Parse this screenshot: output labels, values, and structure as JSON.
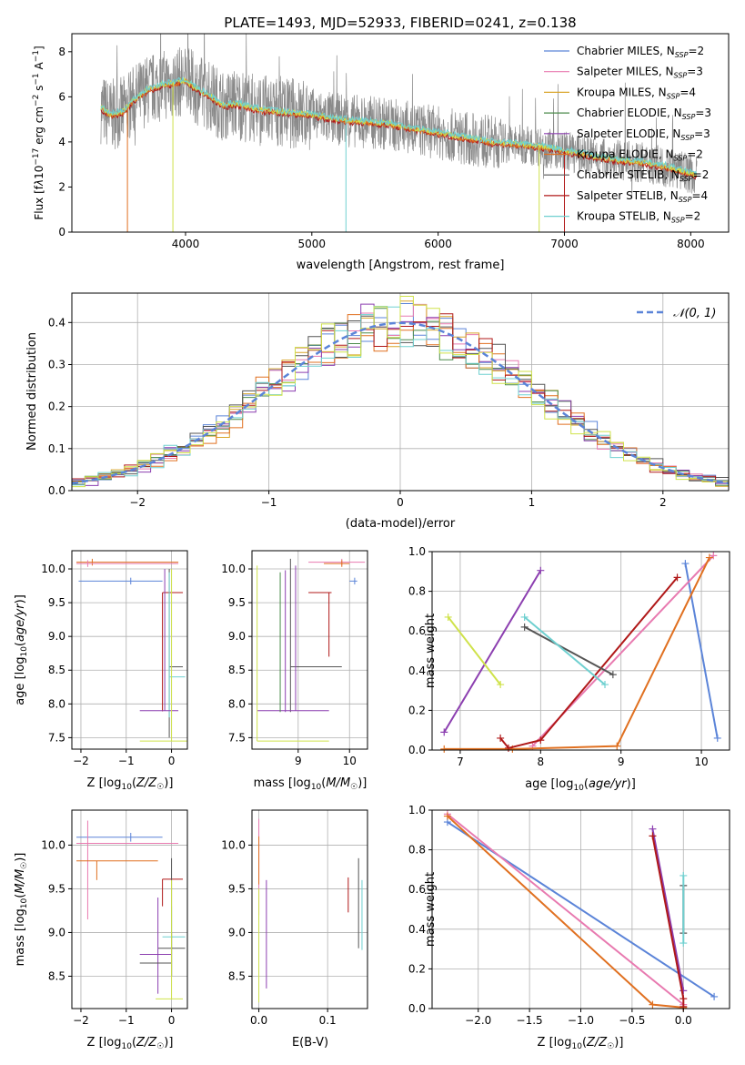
{
  "page_title": "PLATE=1493, MJD=52933, FIBERID=0241, z=0.138",
  "colors": {
    "chabrier_miles": "#5b84d8",
    "salpeter_miles": "#e87ab0",
    "kroupa_miles": "#d9a52a",
    "chabrier_elodie": "#4a8a4a",
    "salpeter_elodie": "#8c3fb0",
    "kroupa_elodie": "#e07020",
    "chabrier_stelib": "#555555",
    "salpeter_stelib": "#b01818",
    "kroupa_stelib": "#6fd0d0",
    "data": "#8a8a8a",
    "yellow": "#cfe24a",
    "normal": "#5b84d8"
  },
  "chart_data": [
    {
      "id": "spectrum",
      "type": "line",
      "title": "PLATE=1493, MJD=52933, FIBERID=0241, z=0.138",
      "xlabel": "wavelength [Angstrom, rest frame]",
      "ylabel": "Flux [f_λ 10⁻¹⁷ erg cm⁻² s⁻¹ A⁻¹]",
      "xlim": [
        3100,
        8300
      ],
      "ylim": [
        0,
        8.8
      ],
      "xticks": [
        "4000",
        "5000",
        "6000",
        "7000",
        "8000"
      ],
      "yticks": [
        "0",
        "2",
        "4",
        "6",
        "8"
      ],
      "legend_position": "top-right",
      "legend": [
        {
          "label": "Chabrier MILES, N_SSP=2",
          "color": "#5b84d8"
        },
        {
          "label": "Salpeter MILES, N_SSP=3",
          "color": "#e87ab0"
        },
        {
          "label": "Kroupa MILES, N_SSP=4",
          "color": "#d9a52a"
        },
        {
          "label": "Chabrier ELODIE, N_SSP=3",
          "color": "#4a8a4a"
        },
        {
          "label": "Salpeter ELODIE, N_SSP=3",
          "color": "#8c3fb0"
        },
        {
          "label": "Kroupa ELODIE, N_SSP=2",
          "color": "#e07020"
        },
        {
          "label": "Chabrier STELIB, N_SSP=2",
          "color": "#555555"
        },
        {
          "label": "Salpeter STELIB, N_SSP=4",
          "color": "#b01818"
        },
        {
          "label": "Kroupa STELIB, N_SSP=2",
          "color": "#6fd0d0"
        }
      ],
      "model_continuum": {
        "x": [
          3330,
          3400,
          3500,
          3600,
          3700,
          3800,
          3900,
          4000,
          4100,
          4200,
          4300,
          4400,
          4600,
          4800,
          5000,
          5200,
          5400,
          5600,
          5800,
          6000,
          6200,
          6400,
          6600,
          6800,
          7000,
          7200,
          7400,
          7600,
          7800,
          8000,
          8050
        ],
        "y": [
          5.5,
          5.2,
          5.3,
          5.9,
          6.3,
          6.5,
          6.6,
          6.7,
          6.3,
          6.0,
          5.6,
          5.7,
          5.4,
          5.3,
          5.2,
          5.0,
          4.9,
          4.8,
          4.6,
          4.4,
          4.2,
          4.0,
          3.9,
          3.8,
          3.6,
          3.4,
          3.2,
          3.1,
          2.9,
          2.6,
          2.5
        ]
      }
    },
    {
      "id": "residuals",
      "type": "line",
      "xlabel": "(data-model)/error",
      "ylabel": "Normed distribution",
      "xlim": [
        -2.5,
        2.5
      ],
      "ylim": [
        0,
        0.47
      ],
      "xticks": [
        "−2",
        "−1",
        "0",
        "1",
        "2"
      ],
      "yticks": [
        "0.0",
        "0.1",
        "0.2",
        "0.3",
        "0.4"
      ],
      "legend_position": "top-right",
      "legend": [
        {
          "label": "𝒩(0, 1)",
          "color": "#5b84d8"
        }
      ],
      "grid": true
    },
    {
      "id": "age_vs_Z",
      "type": "scatter",
      "xlabel": "Z [log₁₀(Z/Z☉)]",
      "ylabel": "age  [log₁₀(age/yr)]",
      "xlim": [
        -2.2,
        0.35
      ],
      "ylim": [
        7.33,
        10.27
      ],
      "xticks": [
        "−2",
        "−1",
        "0"
      ],
      "yticks": [
        "7.5",
        "8.0",
        "8.5",
        "9.0",
        "9.5",
        "10.0"
      ],
      "grid": true
    },
    {
      "id": "age_vs_mass",
      "type": "scatter",
      "xlabel": "mass [log₁₀(M/M☉)]",
      "xlim": [
        8.1,
        10.35
      ],
      "ylim": [
        7.33,
        10.27
      ],
      "xticks": [
        "9",
        "10"
      ],
      "yticks": [
        "7.5",
        "8.0",
        "8.5",
        "9.0",
        "9.5",
        "10.0"
      ],
      "grid": true
    },
    {
      "id": "mass_weight_vs_age",
      "type": "line",
      "xlabel": "age  [log₁₀(age/yr)]",
      "ylabel": "mass weight",
      "xlim": [
        6.65,
        10.35
      ],
      "ylim": [
        0,
        1
      ],
      "xticks": [
        "7",
        "8",
        "9",
        "10"
      ],
      "yticks": [
        "0.0",
        "0.2",
        "0.4",
        "0.6",
        "0.8",
        "1.0"
      ],
      "grid": true,
      "series": [
        {
          "color": "#5b84d8",
          "x": [
            9.8,
            10.2
          ],
          "y": [
            0.94,
            0.06
          ]
        },
        {
          "color": "#e87ab0",
          "x": [
            7.9,
            10.15
          ],
          "y": [
            0.02,
            0.98
          ]
        },
        {
          "color": "#e07020",
          "x": [
            6.8,
            7.65,
            8.95,
            10.1
          ],
          "y": [
            0.005,
            0.005,
            0.02,
            0.97
          ]
        },
        {
          "color": "#b01818",
          "x": [
            7.5,
            7.6,
            8.0,
            9.7
          ],
          "y": [
            0.06,
            0.01,
            0.05,
            0.87
          ]
        },
        {
          "color": "#8c3fb0",
          "x": [
            6.8,
            8.0
          ],
          "y": [
            0.09,
            0.905
          ]
        },
        {
          "color": "#555555",
          "x": [
            7.8,
            8.9
          ],
          "y": [
            0.62,
            0.38
          ]
        },
        {
          "color": "#6fd0d0",
          "x": [
            7.8,
            8.8
          ],
          "y": [
            0.67,
            0.33
          ]
        },
        {
          "color": "#cfe24a",
          "x": [
            6.85,
            7.5
          ],
          "y": [
            0.67,
            0.33
          ]
        }
      ]
    },
    {
      "id": "mass_vs_Z",
      "type": "scatter",
      "xlabel": "Z [log₁₀(Z/Z☉)]",
      "ylabel": "mass [log₁₀(M/M☉)]",
      "xlim": [
        -2.2,
        0.35
      ],
      "ylim": [
        8.13,
        10.4
      ],
      "xticks": [
        "−2",
        "−1",
        "0"
      ],
      "yticks": [
        "8.5",
        "9.0",
        "9.5",
        "10.0"
      ],
      "grid": true
    },
    {
      "id": "mass_vs_ebv",
      "type": "scatter",
      "xlabel": "E(B-V)",
      "xlim": [
        -0.01,
        0.158
      ],
      "ylim": [
        8.13,
        10.4
      ],
      "xticks": [
        "0.0",
        "0.1"
      ],
      "yticks": [
        "8.5",
        "9.0",
        "9.5",
        "10.0"
      ],
      "grid": true
    },
    {
      "id": "mass_weight_vs_Z",
      "type": "line",
      "xlabel": "Z [log₁₀(Z/Z☉)]",
      "ylabel": "mass weight",
      "xlim": [
        -2.45,
        0.45
      ],
      "ylim": [
        0,
        1
      ],
      "xticks": [
        "−2.0",
        "−1.5",
        "−1.0",
        "−0.5",
        "0.0"
      ],
      "yticks": [
        "0.0",
        "0.2",
        "0.4",
        "0.6",
        "0.8",
        "1.0"
      ],
      "grid": true,
      "series": [
        {
          "color": "#5b84d8",
          "x": [
            -2.3,
            0.3
          ],
          "y": [
            0.94,
            0.06
          ]
        },
        {
          "color": "#e87ab0",
          "x": [
            -2.3,
            0.0
          ],
          "y": [
            0.98,
            0.02
          ]
        },
        {
          "color": "#e07020",
          "x": [
            -2.3,
            -0.3,
            0.0
          ],
          "y": [
            0.97,
            0.02,
            0.005
          ]
        },
        {
          "color": "#8c3fb0",
          "x": [
            -0.3,
            0.0
          ],
          "y": [
            0.905,
            0.09
          ]
        },
        {
          "color": "#b01818",
          "x": [
            -0.3,
            0.0,
            0.0
          ],
          "y": [
            0.87,
            0.05,
            0.01
          ]
        },
        {
          "color": "#555555",
          "x": [
            0.0,
            0.0
          ],
          "y": [
            0.62,
            0.38
          ]
        },
        {
          "color": "#6fd0d0",
          "x": [
            0.0,
            0.0
          ],
          "y": [
            0.67,
            0.33
          ]
        }
      ]
    }
  ]
}
